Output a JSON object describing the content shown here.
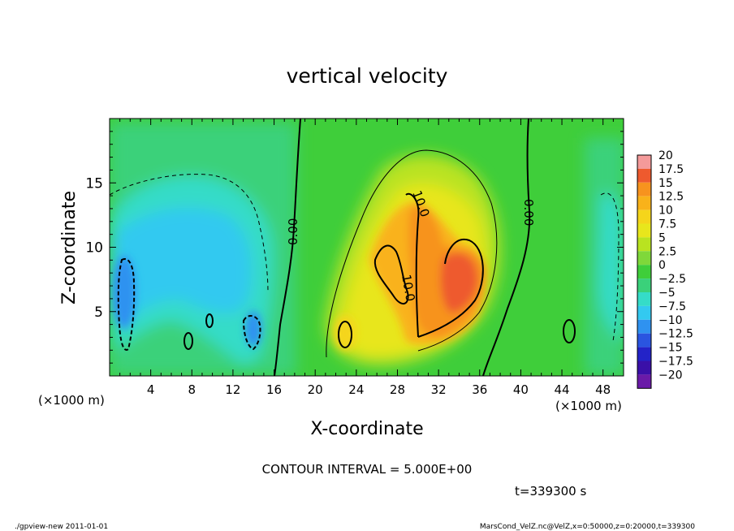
{
  "chart_data": {
    "type": "heatmap",
    "title": "vertical velocity",
    "xlabel": "X-coordinate",
    "ylabel": "Z-coordinate",
    "x_unit_label": "(×1000 m)",
    "xlim": [
      0,
      50
    ],
    "ylim": [
      0,
      20
    ],
    "x_ticks": [
      4,
      8,
      12,
      16,
      20,
      24,
      28,
      32,
      36,
      40,
      44,
      48
    ],
    "x_tick_labels": [
      "4",
      "8",
      "12",
      "16",
      "20",
      "24",
      "28",
      "32",
      "36",
      "40",
      "44",
      "48"
    ],
    "y_ticks": [
      5,
      10,
      15
    ],
    "y_tick_labels": [
      "5",
      "10",
      "15"
    ],
    "colorbar": {
      "levels": [
        20,
        17.5,
        15,
        12.5,
        10,
        7.5,
        5,
        2.5,
        0,
        -2.5,
        -5,
        -7.5,
        -10,
        -12.5,
        -15,
        -17.5,
        -20
      ],
      "labels": [
        "20",
        "17.5",
        "15",
        "12.5",
        "10",
        "7.5",
        "5",
        "2.5",
        "0",
        "−2.5",
        "−5",
        "−7.5",
        "−10",
        "−12.5",
        "−15",
        "−17.5",
        "−20"
      ],
      "colors": [
        "#f49a9a",
        "#ee5a2e",
        "#f7931e",
        "#f9b21a",
        "#f5d51b",
        "#e8e61c",
        "#b9e320",
        "#7fd83a",
        "#3fce3a",
        "#3ad17a",
        "#35dcc8",
        "#33c9f0",
        "#2f92f0",
        "#2a55e0",
        "#2323c8",
        "#3a10a8",
        "#6a1aa8"
      ]
    },
    "contour_labels": [
      "0.00",
      "0.00",
      "10.0",
      "10.0"
    ],
    "contour_interval_text": "CONTOUR INTERVAL = 5.000E+00",
    "time_text": "t=339300 s"
  },
  "footer": {
    "left": "./gpview-new  2011-01-01",
    "right": "MarsCond_VelZ.nc@VelZ,x=0:50000,z=0:20000,t=339300"
  }
}
